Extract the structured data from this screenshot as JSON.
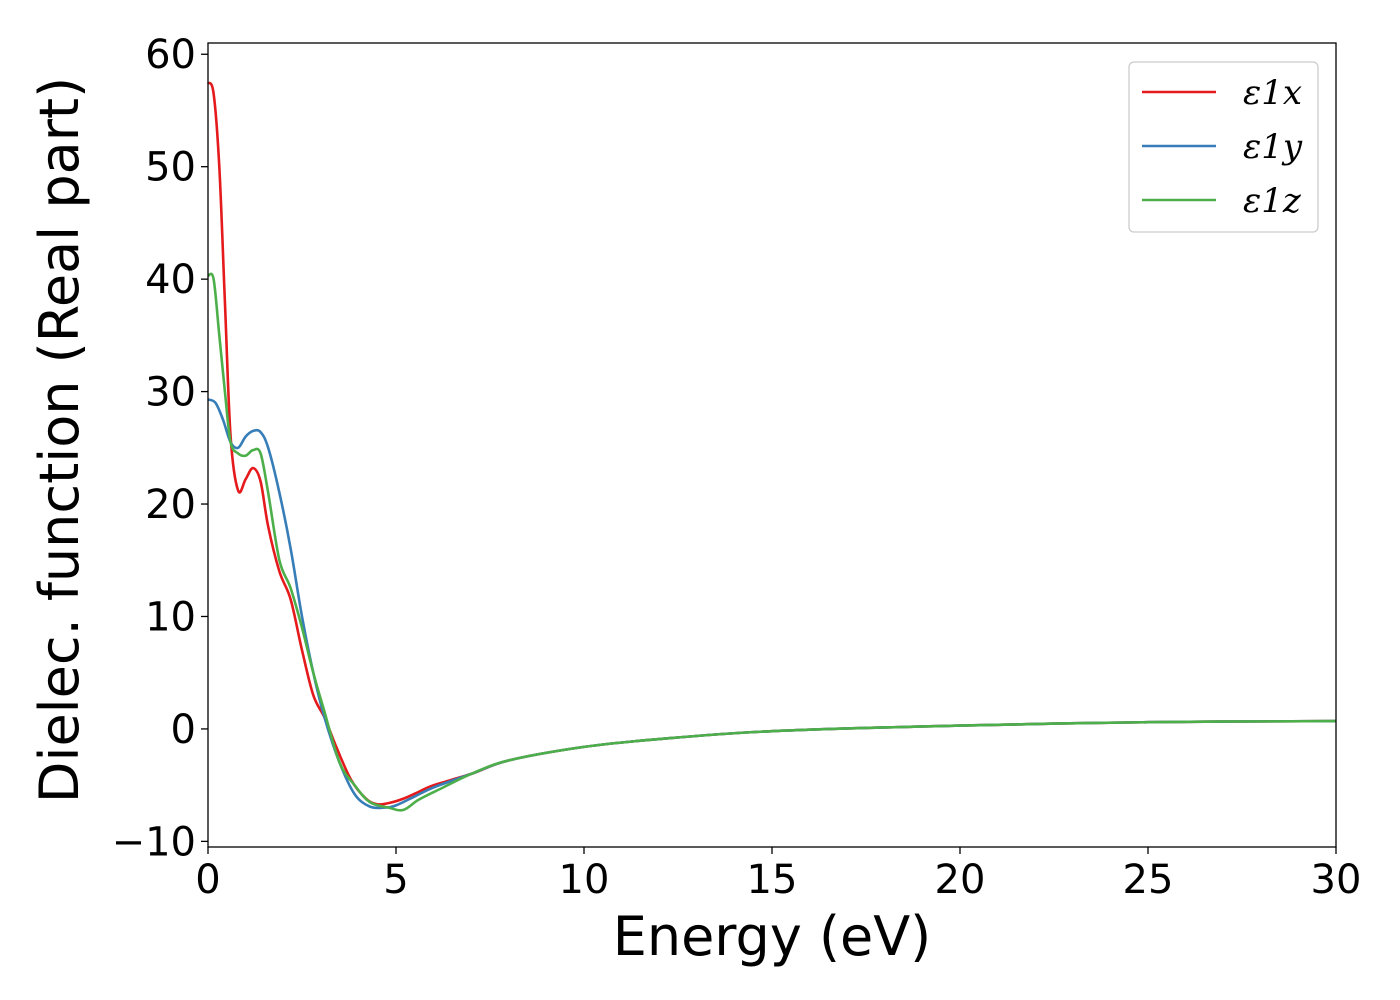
{
  "chart_data": {
    "type": "line",
    "xlabel": "Energy (eV)",
    "ylabel": "Dielec. function (Real part)",
    "xlim": [
      0,
      30
    ],
    "ylim": [
      -10.5,
      61
    ],
    "xticks": [
      0,
      5,
      10,
      15,
      20,
      25,
      30
    ],
    "yticks": [
      -10,
      0,
      10,
      20,
      30,
      40,
      50,
      60
    ],
    "grid": false,
    "legend_position": "top-right",
    "series": [
      {
        "name": "ε1x",
        "color": "#e41a1c",
        "points": [
          [
            0,
            57.5
          ],
          [
            0.15,
            56.5
          ],
          [
            0.3,
            50
          ],
          [
            0.45,
            38
          ],
          [
            0.6,
            26
          ],
          [
            0.8,
            21.2
          ],
          [
            1.0,
            22.2
          ],
          [
            1.2,
            23.2
          ],
          [
            1.4,
            22
          ],
          [
            1.6,
            18
          ],
          [
            1.9,
            14
          ],
          [
            2.2,
            11.5
          ],
          [
            2.5,
            7
          ],
          [
            2.8,
            3
          ],
          [
            3.1,
            1
          ],
          [
            3.4,
            -1.5
          ],
          [
            3.8,
            -4.5
          ],
          [
            4.2,
            -6.2
          ],
          [
            4.5,
            -6.7
          ],
          [
            4.8,
            -6.6
          ],
          [
            5.2,
            -6.2
          ],
          [
            5.6,
            -5.6
          ],
          [
            6.0,
            -5
          ],
          [
            7.0,
            -4
          ],
          [
            8.0,
            -2.8
          ],
          [
            10,
            -1.6
          ],
          [
            12,
            -0.9
          ],
          [
            15,
            -0.2
          ],
          [
            20,
            0.3
          ],
          [
            25,
            0.6
          ],
          [
            30,
            0.7
          ]
        ]
      },
      {
        "name": "ε1y",
        "color": "#377eb8",
        "points": [
          [
            0,
            29.3
          ],
          [
            0.2,
            29
          ],
          [
            0.4,
            27.5
          ],
          [
            0.6,
            25.5
          ],
          [
            0.8,
            25
          ],
          [
            1.0,
            26
          ],
          [
            1.2,
            26.5
          ],
          [
            1.4,
            26.4
          ],
          [
            1.6,
            25
          ],
          [
            1.9,
            21
          ],
          [
            2.2,
            16
          ],
          [
            2.5,
            10
          ],
          [
            2.8,
            5
          ],
          [
            3.1,
            1
          ],
          [
            3.5,
            -3
          ],
          [
            3.9,
            -5.8
          ],
          [
            4.3,
            -6.9
          ],
          [
            4.7,
            -7
          ],
          [
            5.0,
            -6.8
          ],
          [
            5.5,
            -6
          ],
          [
            6.0,
            -5.2
          ],
          [
            7.0,
            -4
          ],
          [
            8.0,
            -2.8
          ],
          [
            10,
            -1.6
          ],
          [
            12,
            -0.9
          ],
          [
            15,
            -0.2
          ],
          [
            20,
            0.3
          ],
          [
            25,
            0.6
          ],
          [
            30,
            0.7
          ]
        ]
      },
      {
        "name": "ε1z",
        "color": "#4daf4a",
        "points": [
          [
            0,
            40.3
          ],
          [
            0.15,
            40
          ],
          [
            0.3,
            35
          ],
          [
            0.45,
            30
          ],
          [
            0.6,
            25.5
          ],
          [
            0.8,
            24.5
          ],
          [
            1.0,
            24.3
          ],
          [
            1.2,
            24.8
          ],
          [
            1.4,
            24.5
          ],
          [
            1.6,
            21
          ],
          [
            1.9,
            15
          ],
          [
            2.2,
            12.5
          ],
          [
            2.5,
            9
          ],
          [
            2.8,
            5
          ],
          [
            3.1,
            1.5
          ],
          [
            3.5,
            -3
          ],
          [
            3.9,
            -5
          ],
          [
            4.3,
            -6.5
          ],
          [
            4.8,
            -7
          ],
          [
            5.2,
            -7.2
          ],
          [
            5.6,
            -6.3
          ],
          [
            6.2,
            -5.3
          ],
          [
            7.0,
            -4
          ],
          [
            8.0,
            -2.8
          ],
          [
            10,
            -1.6
          ],
          [
            12,
            -0.9
          ],
          [
            15,
            -0.2
          ],
          [
            20,
            0.3
          ],
          [
            25,
            0.6
          ],
          [
            30,
            0.7
          ]
        ]
      }
    ]
  }
}
